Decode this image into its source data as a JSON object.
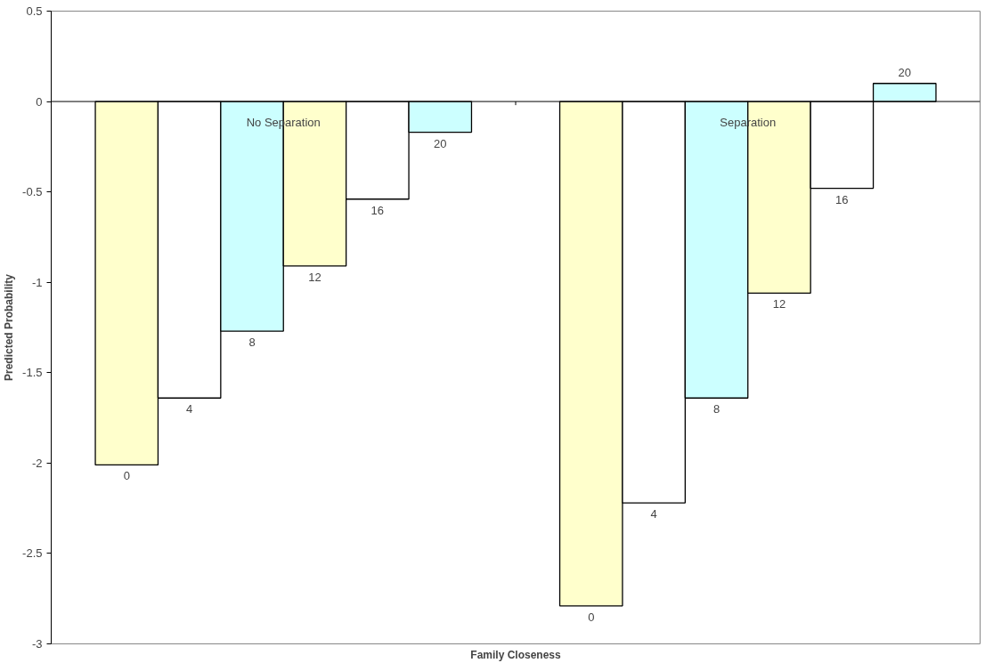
{
  "chart_data": {
    "type": "bar",
    "xlabel": "Family Closeness",
    "ylabel": "Predicted Probability",
    "categories": [
      "No Separation",
      "Separation"
    ],
    "series": [
      {
        "name": "0",
        "color": "#ffffcc",
        "values": [
          -2.01,
          -2.79
        ]
      },
      {
        "name": "4",
        "color": "#ffffff",
        "values": [
          -1.64,
          -2.22
        ]
      },
      {
        "name": "8",
        "color": "#ccffff",
        "values": [
          -1.27,
          -1.64
        ]
      },
      {
        "name": "12",
        "color": "#ffffcc",
        "values": [
          -0.91,
          -1.06
        ]
      },
      {
        "name": "16",
        "color": "#ffffff",
        "values": [
          -0.54,
          -0.48
        ]
      },
      {
        "name": "20",
        "color": "#ccffff",
        "values": [
          -0.17,
          0.1
        ]
      }
    ],
    "ylim": [
      -3,
      0.5
    ],
    "yticks": [
      0.5,
      0,
      -0.5,
      -1,
      -1.5,
      -2,
      -2.5,
      -3
    ],
    "grid": false
  }
}
